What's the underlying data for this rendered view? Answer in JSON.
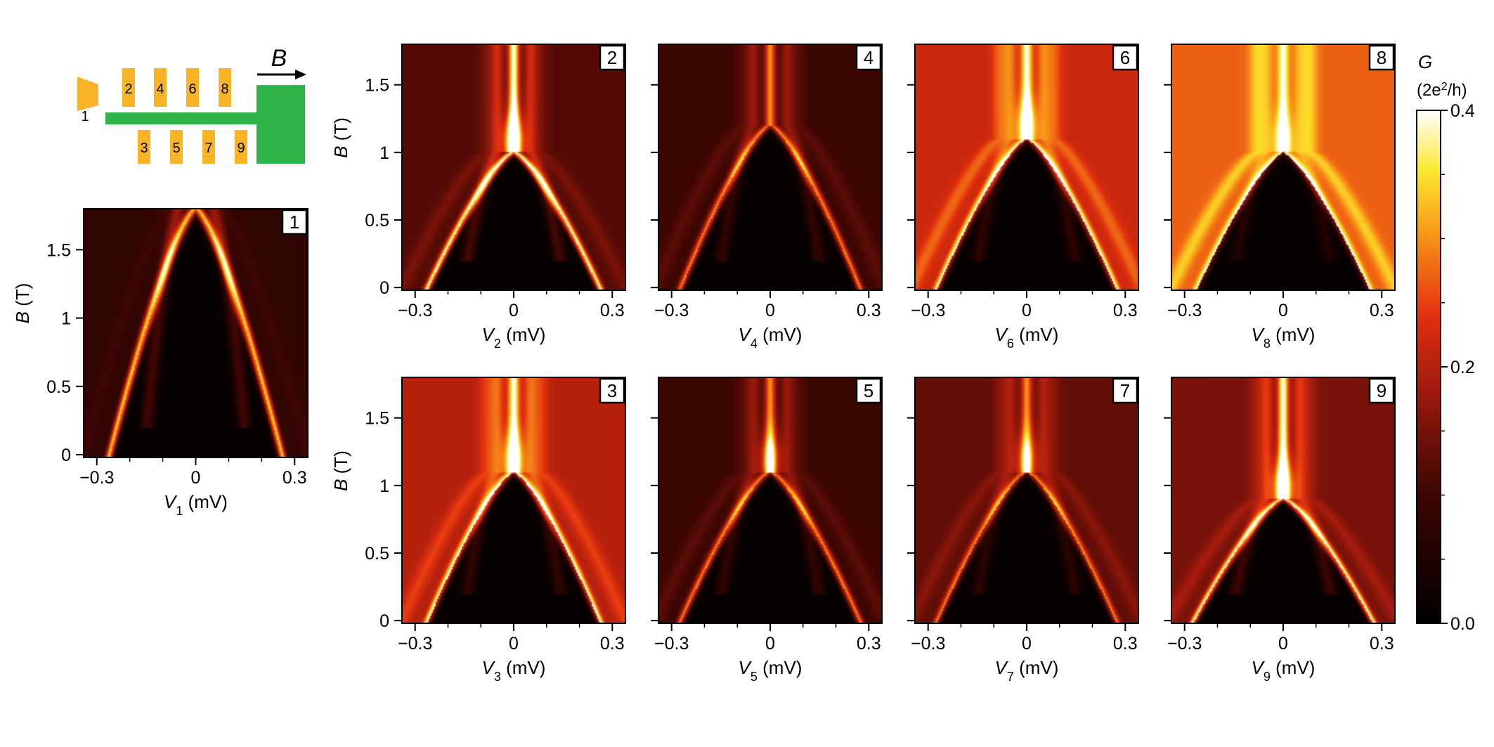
{
  "schematic": {
    "field_label": "B",
    "lead_label": "1",
    "gate_labels_top": [
      "2",
      "4",
      "6",
      "8"
    ],
    "gate_labels_bottom": [
      "3",
      "5",
      "7",
      "9"
    ],
    "colors": {
      "gate": "#f8b426",
      "wire": "#2eb24a"
    }
  },
  "colorbar": {
    "label": "G",
    "unit_prefix": "(2e",
    "unit_sup": "2",
    "unit_suffix": "/h)",
    "ticks": [
      "0.0",
      "0.2",
      "0.4"
    ],
    "range": [
      0,
      0.4
    ],
    "colormap": "afmhot"
  },
  "y_axis": {
    "label": "B",
    "unit": "(T)"
  },
  "x_unit": "(mV)",
  "chart_data": [
    {
      "type": "heatmap",
      "panel": "1",
      "xlabel": "V1 (mV)",
      "ylabel": "B (T)",
      "x_range": [
        -0.34,
        0.34
      ],
      "y_range": [
        -0.02,
        1.8
      ],
      "xticks": [
        "-0.3",
        "0",
        "0.3"
      ],
      "yticks": [
        "0",
        "0.5",
        "1",
        "1.5"
      ],
      "gap_closing_field_T": 1.8,
      "gap_at_zero_field_mV": 0.26,
      "zero_energy_peak": false,
      "background_G": 0.08,
      "peak_G": 0.35
    },
    {
      "type": "heatmap",
      "panel": "2",
      "xlabel": "V2 (mV)",
      "ylabel": "B (T)",
      "x_range": [
        -0.34,
        0.34
      ],
      "y_range": [
        -0.02,
        1.8
      ],
      "xticks": [
        "-0.3",
        "0",
        "0.3"
      ],
      "yticks": [
        "0",
        "0.5",
        "1",
        "1.5"
      ],
      "gap_closing_field_T": 1.0,
      "gap_at_zero_field_mV": 0.26,
      "zero_energy_peak": true,
      "background_G": 0.12,
      "peak_G": 0.4
    },
    {
      "type": "heatmap",
      "panel": "3",
      "xlabel": "V3 (mV)",
      "ylabel": "B (T)",
      "x_range": [
        -0.34,
        0.34
      ],
      "y_range": [
        -0.02,
        1.8
      ],
      "xticks": [
        "-0.3",
        "0",
        "0.3"
      ],
      "yticks": [
        "0",
        "0.5",
        "1",
        "1.5"
      ],
      "gap_closing_field_T": 1.1,
      "gap_at_zero_field_mV": 0.26,
      "zero_energy_peak": true,
      "background_G": 0.2,
      "peak_G": 0.4
    },
    {
      "type": "heatmap",
      "panel": "4",
      "xlabel": "V4 (mV)",
      "ylabel": "B (T)",
      "x_range": [
        -0.34,
        0.34
      ],
      "y_range": [
        -0.02,
        1.8
      ],
      "xticks": [
        "-0.3",
        "0",
        "0.3"
      ],
      "yticks": [
        "0",
        "0.5",
        "1",
        "1.5"
      ],
      "gap_closing_field_T": 1.2,
      "gap_at_zero_field_mV": 0.27,
      "zero_energy_peak": false,
      "background_G": 0.1,
      "peak_G": 0.3
    },
    {
      "type": "heatmap",
      "panel": "5",
      "xlabel": "V5 (mV)",
      "ylabel": "B (T)",
      "x_range": [
        -0.34,
        0.34
      ],
      "y_range": [
        -0.02,
        1.8
      ],
      "xticks": [
        "-0.3",
        "0",
        "0.3"
      ],
      "yticks": [
        "0",
        "0.5",
        "1",
        "1.5"
      ],
      "gap_closing_field_T": 1.1,
      "gap_at_zero_field_mV": 0.27,
      "zero_energy_peak": true,
      "background_G": 0.1,
      "peak_G": 0.3
    },
    {
      "type": "heatmap",
      "panel": "6",
      "xlabel": "V6 (mV)",
      "ylabel": "B (T)",
      "x_range": [
        -0.34,
        0.34
      ],
      "y_range": [
        -0.02,
        1.8
      ],
      "xticks": [
        "-0.3",
        "0",
        "0.3"
      ],
      "yticks": [
        "0",
        "0.5",
        "1",
        "1.5"
      ],
      "gap_closing_field_T": 1.1,
      "gap_at_zero_field_mV": 0.27,
      "zero_energy_peak": true,
      "background_G": 0.22,
      "peak_G": 0.4
    },
    {
      "type": "heatmap",
      "panel": "7",
      "xlabel": "V7 (mV)",
      "ylabel": "B (T)",
      "x_range": [
        -0.34,
        0.34
      ],
      "y_range": [
        -0.02,
        1.8
      ],
      "xticks": [
        "-0.3",
        "0",
        "0.3"
      ],
      "yticks": [
        "0",
        "0.5",
        "1",
        "1.5"
      ],
      "gap_closing_field_T": 1.1,
      "gap_at_zero_field_mV": 0.27,
      "zero_energy_peak": true,
      "background_G": 0.13,
      "peak_G": 0.3
    },
    {
      "type": "heatmap",
      "panel": "8",
      "xlabel": "V8 (mV)",
      "ylabel": "B (T)",
      "x_range": [
        -0.34,
        0.34
      ],
      "y_range": [
        -0.02,
        1.8
      ],
      "xticks": [
        "-0.3",
        "0",
        "0.3"
      ],
      "yticks": [
        "0",
        "0.5",
        "1",
        "1.5"
      ],
      "gap_closing_field_T": 1.0,
      "gap_at_zero_field_mV": 0.26,
      "zero_energy_peak": true,
      "background_G": 0.27,
      "peak_G": 0.4
    },
    {
      "type": "heatmap",
      "panel": "9",
      "xlabel": "V9 (mV)",
      "ylabel": "B (T)",
      "x_range": [
        -0.34,
        0.34
      ],
      "y_range": [
        -0.02,
        1.8
      ],
      "xticks": [
        "-0.3",
        "0",
        "0.3"
      ],
      "yticks": [
        "0",
        "0.5",
        "1",
        "1.5"
      ],
      "gap_closing_field_T": 0.9,
      "gap_at_zero_field_mV": 0.27,
      "zero_energy_peak": true,
      "background_G": 0.15,
      "peak_G": 0.4
    }
  ]
}
